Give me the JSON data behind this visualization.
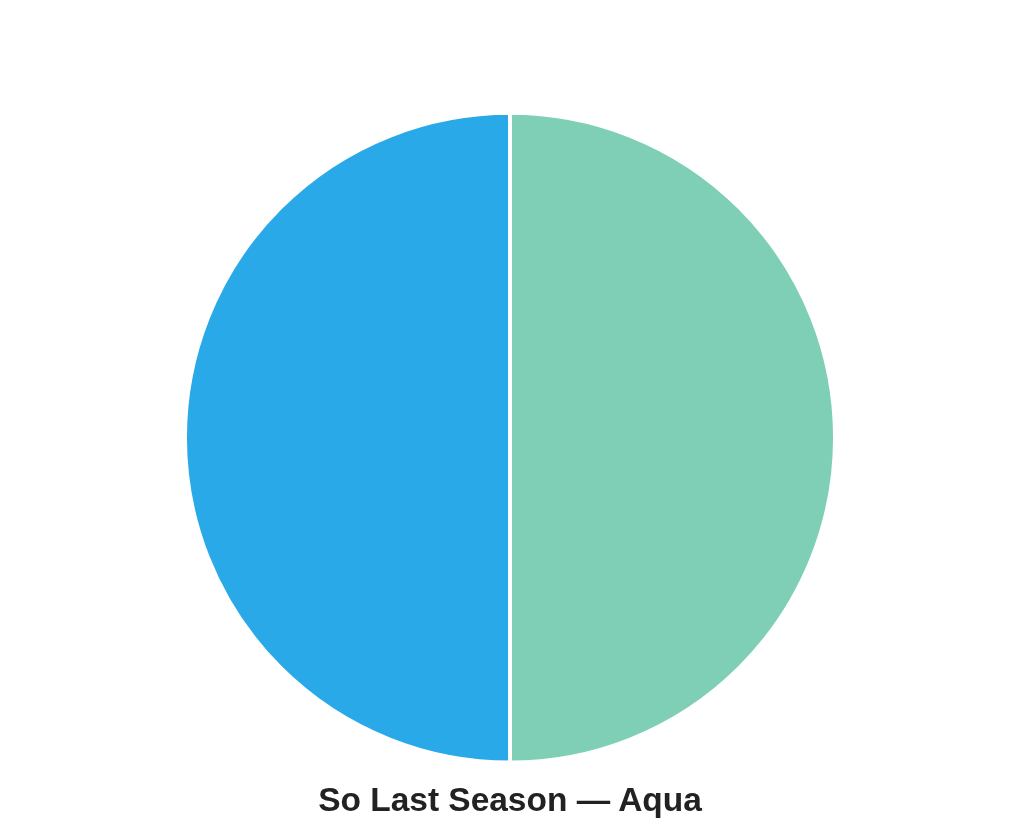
{
  "chart_data": {
    "type": "pie",
    "title": "So Last Season — Aqua",
    "categories": [
      null,
      null
    ],
    "values": [
      50,
      50
    ],
    "colors": [
      "#7ecfb5",
      "#2aa9e8"
    ],
    "legend": false
  }
}
